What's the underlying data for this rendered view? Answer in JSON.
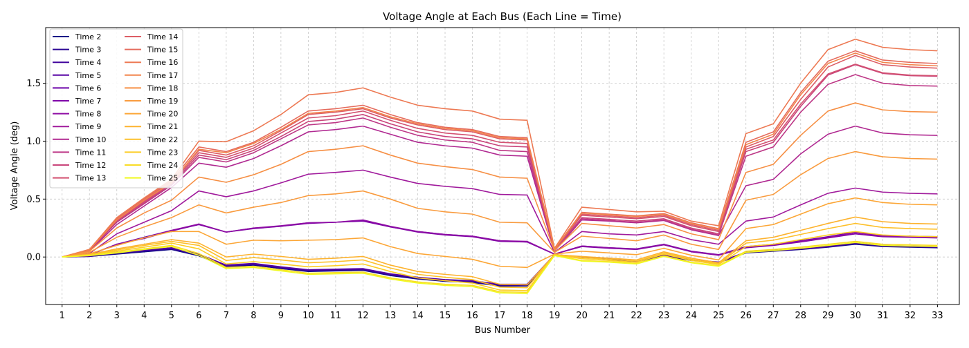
{
  "chart_data": {
    "type": "line",
    "title": "Voltage Angle at Each Bus (Each Line = Time)",
    "xlabel": "Bus Number",
    "ylabel": "Voltage Angle (deg)",
    "xlim": [
      0.4,
      33.8
    ],
    "ylim": [
      -0.41,
      1.98
    ],
    "x": [
      1,
      2,
      3,
      4,
      5,
      6,
      7,
      8,
      9,
      10,
      11,
      12,
      13,
      14,
      15,
      16,
      17,
      18,
      19,
      20,
      21,
      22,
      23,
      24,
      25,
      26,
      27,
      28,
      29,
      30,
      31,
      32,
      33
    ],
    "x_tick_labels": [
      "1",
      "2",
      "3",
      "4",
      "5",
      "6",
      "7",
      "8",
      "9",
      "10",
      "11",
      "12",
      "13",
      "14",
      "15",
      "16",
      "17",
      "18",
      "19",
      "20",
      "21",
      "22",
      "23",
      "24",
      "25",
      "26",
      "27",
      "28",
      "29",
      "30",
      "31",
      "32",
      "33"
    ],
    "y_ticks": [
      0.0,
      0.5,
      1.0,
      1.5
    ],
    "y_tick_labels": [
      "0.0",
      "0.5",
      "1.0",
      "1.5"
    ],
    "grid": true,
    "legend_position": "upper-left",
    "legend_columns": 2,
    "colormap": "plasma",
    "series": [
      {
        "name": "Time 2",
        "color": "#0d0887",
        "values": [
          0,
          0.005,
          0.025,
          0.045,
          0.065,
          0.01,
          -0.085,
          -0.07,
          -0.1,
          -0.125,
          -0.12,
          -0.115,
          -0.16,
          -0.19,
          -0.21,
          -0.22,
          -0.25,
          -0.25,
          0.02,
          0.0,
          -0.02,
          -0.04,
          0.01,
          -0.03,
          -0.05,
          0.035,
          0.05,
          0.065,
          0.085,
          0.11,
          0.09,
          0.085,
          0.08
        ]
      },
      {
        "name": "Time 3",
        "color": "#2a0593",
        "values": [
          0,
          0.006,
          0.03,
          0.05,
          0.07,
          0.015,
          -0.08,
          -0.065,
          -0.095,
          -0.12,
          -0.115,
          -0.11,
          -0.155,
          -0.185,
          -0.205,
          -0.215,
          -0.245,
          -0.245,
          0.02,
          0.0,
          -0.02,
          -0.04,
          0.015,
          -0.028,
          -0.048,
          0.037,
          0.052,
          0.067,
          0.088,
          0.115,
          0.093,
          0.088,
          0.083
        ]
      },
      {
        "name": "Time 4",
        "color": "#41049d",
        "values": [
          0,
          0.007,
          0.035,
          0.055,
          0.075,
          0.02,
          -0.075,
          -0.06,
          -0.09,
          -0.115,
          -0.11,
          -0.105,
          -0.15,
          -0.18,
          -0.2,
          -0.21,
          -0.24,
          -0.24,
          0.02,
          0.0,
          -0.018,
          -0.038,
          0.018,
          -0.026,
          -0.046,
          0.04,
          0.055,
          0.07,
          0.09,
          0.12,
          0.097,
          0.091,
          0.086
        ]
      },
      {
        "name": "Time 5",
        "color": "#5601a4",
        "values": [
          0,
          0.008,
          0.04,
          0.06,
          0.08,
          0.025,
          -0.07,
          -0.055,
          -0.085,
          -0.11,
          -0.105,
          -0.1,
          -0.145,
          -0.175,
          -0.195,
          -0.205,
          -0.235,
          -0.235,
          0.02,
          0.002,
          -0.016,
          -0.036,
          0.02,
          -0.024,
          -0.044,
          0.042,
          0.058,
          0.073,
          0.093,
          0.125,
          0.1,
          0.094,
          0.089
        ]
      },
      {
        "name": "Time 6",
        "color": "#6a00a8",
        "values": [
          0,
          0.02,
          0.11,
          0.17,
          0.23,
          0.28,
          0.215,
          0.25,
          0.265,
          0.295,
          0.3,
          0.315,
          0.26,
          0.22,
          0.195,
          0.18,
          0.14,
          0.13,
          0.025,
          0.095,
          0.08,
          0.07,
          0.11,
          0.05,
          0.02,
          0.09,
          0.11,
          0.14,
          0.175,
          0.215,
          0.185,
          0.18,
          0.175
        ]
      },
      {
        "name": "Time 7",
        "color": "#7e03a8",
        "values": [
          0,
          0.018,
          0.11,
          0.16,
          0.225,
          0.28,
          0.215,
          0.245,
          0.265,
          0.29,
          0.3,
          0.31,
          0.26,
          0.215,
          0.19,
          0.175,
          0.135,
          0.13,
          0.025,
          0.09,
          0.075,
          0.065,
          0.105,
          0.045,
          0.015,
          0.08,
          0.1,
          0.13,
          0.165,
          0.2,
          0.175,
          0.17,
          0.165
        ]
      },
      {
        "name": "Time 8",
        "color": "#8f0da4",
        "values": [
          0,
          0.018,
          0.11,
          0.165,
          0.23,
          0.285,
          0.215,
          0.25,
          0.27,
          0.295,
          0.3,
          0.32,
          0.265,
          0.22,
          0.195,
          0.18,
          0.14,
          0.135,
          0.025,
          0.095,
          0.08,
          0.068,
          0.108,
          0.048,
          0.018,
          0.085,
          0.105,
          0.135,
          0.17,
          0.21,
          0.18,
          0.175,
          0.17
        ]
      },
      {
        "name": "Time 9",
        "color": "#a01a9c",
        "values": [
          0,
          0.03,
          0.2,
          0.3,
          0.4,
          0.57,
          0.52,
          0.57,
          0.64,
          0.715,
          0.73,
          0.75,
          0.69,
          0.635,
          0.61,
          0.59,
          0.54,
          0.535,
          0.04,
          0.22,
          0.2,
          0.19,
          0.22,
          0.15,
          0.11,
          0.31,
          0.345,
          0.45,
          0.55,
          0.595,
          0.56,
          0.55,
          0.545
        ]
      },
      {
        "name": "Time 10",
        "color": "#b02991",
        "values": [
          0,
          0.05,
          0.28,
          0.44,
          0.6,
          0.81,
          0.775,
          0.85,
          0.96,
          1.08,
          1.1,
          1.13,
          1.06,
          0.99,
          0.96,
          0.94,
          0.88,
          0.87,
          0.05,
          0.32,
          0.31,
          0.295,
          0.315,
          0.235,
          0.185,
          0.615,
          0.67,
          0.89,
          1.06,
          1.13,
          1.07,
          1.055,
          1.05
        ]
      },
      {
        "name": "Time 11",
        "color": "#bd3786",
        "values": [
          0,
          0.055,
          0.3,
          0.46,
          0.62,
          0.86,
          0.82,
          0.9,
          1.02,
          1.14,
          1.16,
          1.2,
          1.12,
          1.05,
          1.01,
          0.99,
          0.92,
          0.91,
          0.055,
          0.33,
          0.315,
          0.3,
          0.32,
          0.24,
          0.19,
          0.87,
          0.95,
          1.25,
          1.49,
          1.575,
          1.5,
          1.48,
          1.475
        ]
      },
      {
        "name": "Time 12",
        "color": "#c9447a",
        "values": [
          0,
          0.058,
          0.31,
          0.47,
          0.63,
          0.88,
          0.84,
          0.92,
          1.04,
          1.17,
          1.19,
          1.23,
          1.15,
          1.08,
          1.04,
          1.02,
          0.96,
          0.95,
          0.06,
          0.34,
          0.325,
          0.31,
          0.33,
          0.25,
          0.2,
          0.91,
          0.99,
          1.3,
          1.57,
          1.66,
          1.585,
          1.565,
          1.56
        ]
      },
      {
        "name": "Time 13",
        "color": "#d35171",
        "values": [
          0,
          0.06,
          0.315,
          0.48,
          0.64,
          0.9,
          0.86,
          0.94,
          1.07,
          1.2,
          1.22,
          1.26,
          1.18,
          1.11,
          1.07,
          1.05,
          0.99,
          0.98,
          0.063,
          0.36,
          0.345,
          0.33,
          0.35,
          0.27,
          0.22,
          0.93,
          1.01,
          1.32,
          1.58,
          1.665,
          1.59,
          1.57,
          1.565
        ]
      },
      {
        "name": "Time 14",
        "color": "#dd5e66",
        "values": [
          0,
          0.062,
          0.32,
          0.49,
          0.65,
          0.92,
          0.88,
          0.96,
          1.09,
          1.23,
          1.25,
          1.28,
          1.2,
          1.14,
          1.1,
          1.08,
          1.02,
          1.01,
          0.065,
          0.37,
          0.355,
          0.34,
          0.36,
          0.28,
          0.23,
          0.95,
          1.04,
          1.36,
          1.64,
          1.74,
          1.66,
          1.64,
          1.63
        ]
      },
      {
        "name": "Time 15",
        "color": "#e56b5d",
        "values": [
          0,
          0.064,
          0.33,
          0.5,
          0.66,
          0.95,
          0.91,
          0.99,
          1.12,
          1.26,
          1.28,
          1.31,
          1.23,
          1.16,
          1.12,
          1.1,
          1.04,
          1.03,
          0.07,
          0.385,
          0.37,
          0.355,
          0.375,
          0.295,
          0.245,
          0.99,
          1.08,
          1.42,
          1.69,
          1.78,
          1.7,
          1.68,
          1.67
        ]
      },
      {
        "name": "Time 16",
        "color": "#ed7953",
        "values": [
          0,
          0.066,
          0.34,
          0.51,
          0.67,
          1.0,
          0.995,
          1.09,
          1.23,
          1.4,
          1.42,
          1.46,
          1.38,
          1.31,
          1.28,
          1.26,
          1.19,
          1.18,
          0.075,
          0.43,
          0.41,
          0.39,
          0.395,
          0.31,
          0.27,
          1.065,
          1.15,
          1.5,
          1.79,
          1.88,
          1.81,
          1.79,
          1.78
        ]
      },
      {
        "name": "Time 17",
        "color": "#f2844b",
        "values": [
          0,
          0.063,
          0.32,
          0.49,
          0.64,
          0.93,
          0.9,
          0.98,
          1.1,
          1.24,
          1.26,
          1.29,
          1.21,
          1.15,
          1.11,
          1.09,
          1.03,
          1.02,
          0.068,
          0.38,
          0.365,
          0.35,
          0.37,
          0.29,
          0.24,
          0.97,
          1.06,
          1.4,
          1.67,
          1.76,
          1.68,
          1.66,
          1.65
        ]
      },
      {
        "name": "Time 18",
        "color": "#f68f44",
        "values": [
          0,
          0.05,
          0.25,
          0.38,
          0.49,
          0.69,
          0.645,
          0.71,
          0.8,
          0.91,
          0.93,
          0.96,
          0.88,
          0.81,
          0.78,
          0.755,
          0.69,
          0.68,
          0.055,
          0.29,
          0.27,
          0.25,
          0.28,
          0.2,
          0.15,
          0.73,
          0.8,
          1.05,
          1.26,
          1.33,
          1.27,
          1.255,
          1.25
        ]
      },
      {
        "name": "Time 19",
        "color": "#f99b3e",
        "values": [
          0,
          0.04,
          0.17,
          0.26,
          0.34,
          0.45,
          0.38,
          0.43,
          0.47,
          0.53,
          0.545,
          0.57,
          0.5,
          0.42,
          0.39,
          0.37,
          0.3,
          0.295,
          0.04,
          0.18,
          0.16,
          0.14,
          0.19,
          0.11,
          0.065,
          0.49,
          0.54,
          0.71,
          0.85,
          0.91,
          0.865,
          0.85,
          0.845
        ]
      },
      {
        "name": "Time 20",
        "color": "#fca636",
        "values": [
          0,
          0.028,
          0.1,
          0.165,
          0.22,
          0.22,
          0.11,
          0.145,
          0.14,
          0.145,
          0.15,
          0.165,
          0.09,
          0.03,
          0.005,
          -0.02,
          -0.08,
          -0.09,
          0.025,
          0.05,
          0.035,
          0.02,
          0.075,
          0.015,
          -0.025,
          0.245,
          0.28,
          0.37,
          0.46,
          0.51,
          0.47,
          0.455,
          0.45
        ]
      },
      {
        "name": "Time 21",
        "color": "#fdb32f",
        "values": [
          0,
          0.022,
          0.07,
          0.11,
          0.15,
          0.12,
          0.0,
          0.025,
          0.005,
          -0.02,
          -0.01,
          0.005,
          -0.07,
          -0.125,
          -0.15,
          -0.17,
          -0.235,
          -0.24,
          0.02,
          0.005,
          -0.01,
          -0.025,
          0.045,
          -0.01,
          -0.05,
          0.14,
          0.17,
          0.23,
          0.29,
          0.345,
          0.305,
          0.29,
          0.285
        ]
      },
      {
        "name": "Time 22",
        "color": "#fdc02a",
        "values": [
          0,
          0.02,
          0.06,
          0.1,
          0.135,
          0.1,
          -0.03,
          -0.005,
          -0.025,
          -0.05,
          -0.04,
          -0.025,
          -0.095,
          -0.15,
          -0.175,
          -0.195,
          -0.26,
          -0.265,
          0.02,
          -0.005,
          -0.02,
          -0.035,
          0.035,
          -0.02,
          -0.058,
          0.12,
          0.145,
          0.195,
          0.245,
          0.29,
          0.255,
          0.245,
          0.24
        ]
      },
      {
        "name": "Time 23",
        "color": "#fccd25",
        "values": [
          0,
          0.017,
          0.05,
          0.085,
          0.12,
          0.07,
          -0.06,
          -0.04,
          -0.06,
          -0.085,
          -0.075,
          -0.06,
          -0.125,
          -0.18,
          -0.205,
          -0.225,
          -0.285,
          -0.29,
          0.018,
          -0.015,
          -0.03,
          -0.045,
          0.025,
          -0.03,
          -0.065,
          0.09,
          0.11,
          0.15,
          0.19,
          0.22,
          0.19,
          0.18,
          0.175
        ]
      },
      {
        "name": "Time 24",
        "color": "#f9dc24",
        "values": [
          0,
          0.014,
          0.04,
          0.07,
          0.1,
          0.03,
          -0.09,
          -0.08,
          -0.11,
          -0.14,
          -0.135,
          -0.13,
          -0.18,
          -0.215,
          -0.235,
          -0.245,
          -0.3,
          -0.305,
          0.015,
          -0.03,
          -0.04,
          -0.055,
          0.01,
          -0.045,
          -0.075,
          0.05,
          0.065,
          0.085,
          0.11,
          0.135,
          0.11,
          0.105,
          0.1
        ]
      },
      {
        "name": "Time 25",
        "color": "#f0f921",
        "values": [
          0,
          0.012,
          0.035,
          0.065,
          0.09,
          0.015,
          -0.1,
          -0.09,
          -0.12,
          -0.15,
          -0.145,
          -0.14,
          -0.19,
          -0.225,
          -0.245,
          -0.255,
          -0.31,
          -0.315,
          0.012,
          -0.035,
          -0.045,
          -0.06,
          0.005,
          -0.05,
          -0.08,
          0.04,
          0.055,
          0.075,
          0.1,
          0.125,
          0.1,
          0.095,
          0.09
        ]
      }
    ]
  }
}
